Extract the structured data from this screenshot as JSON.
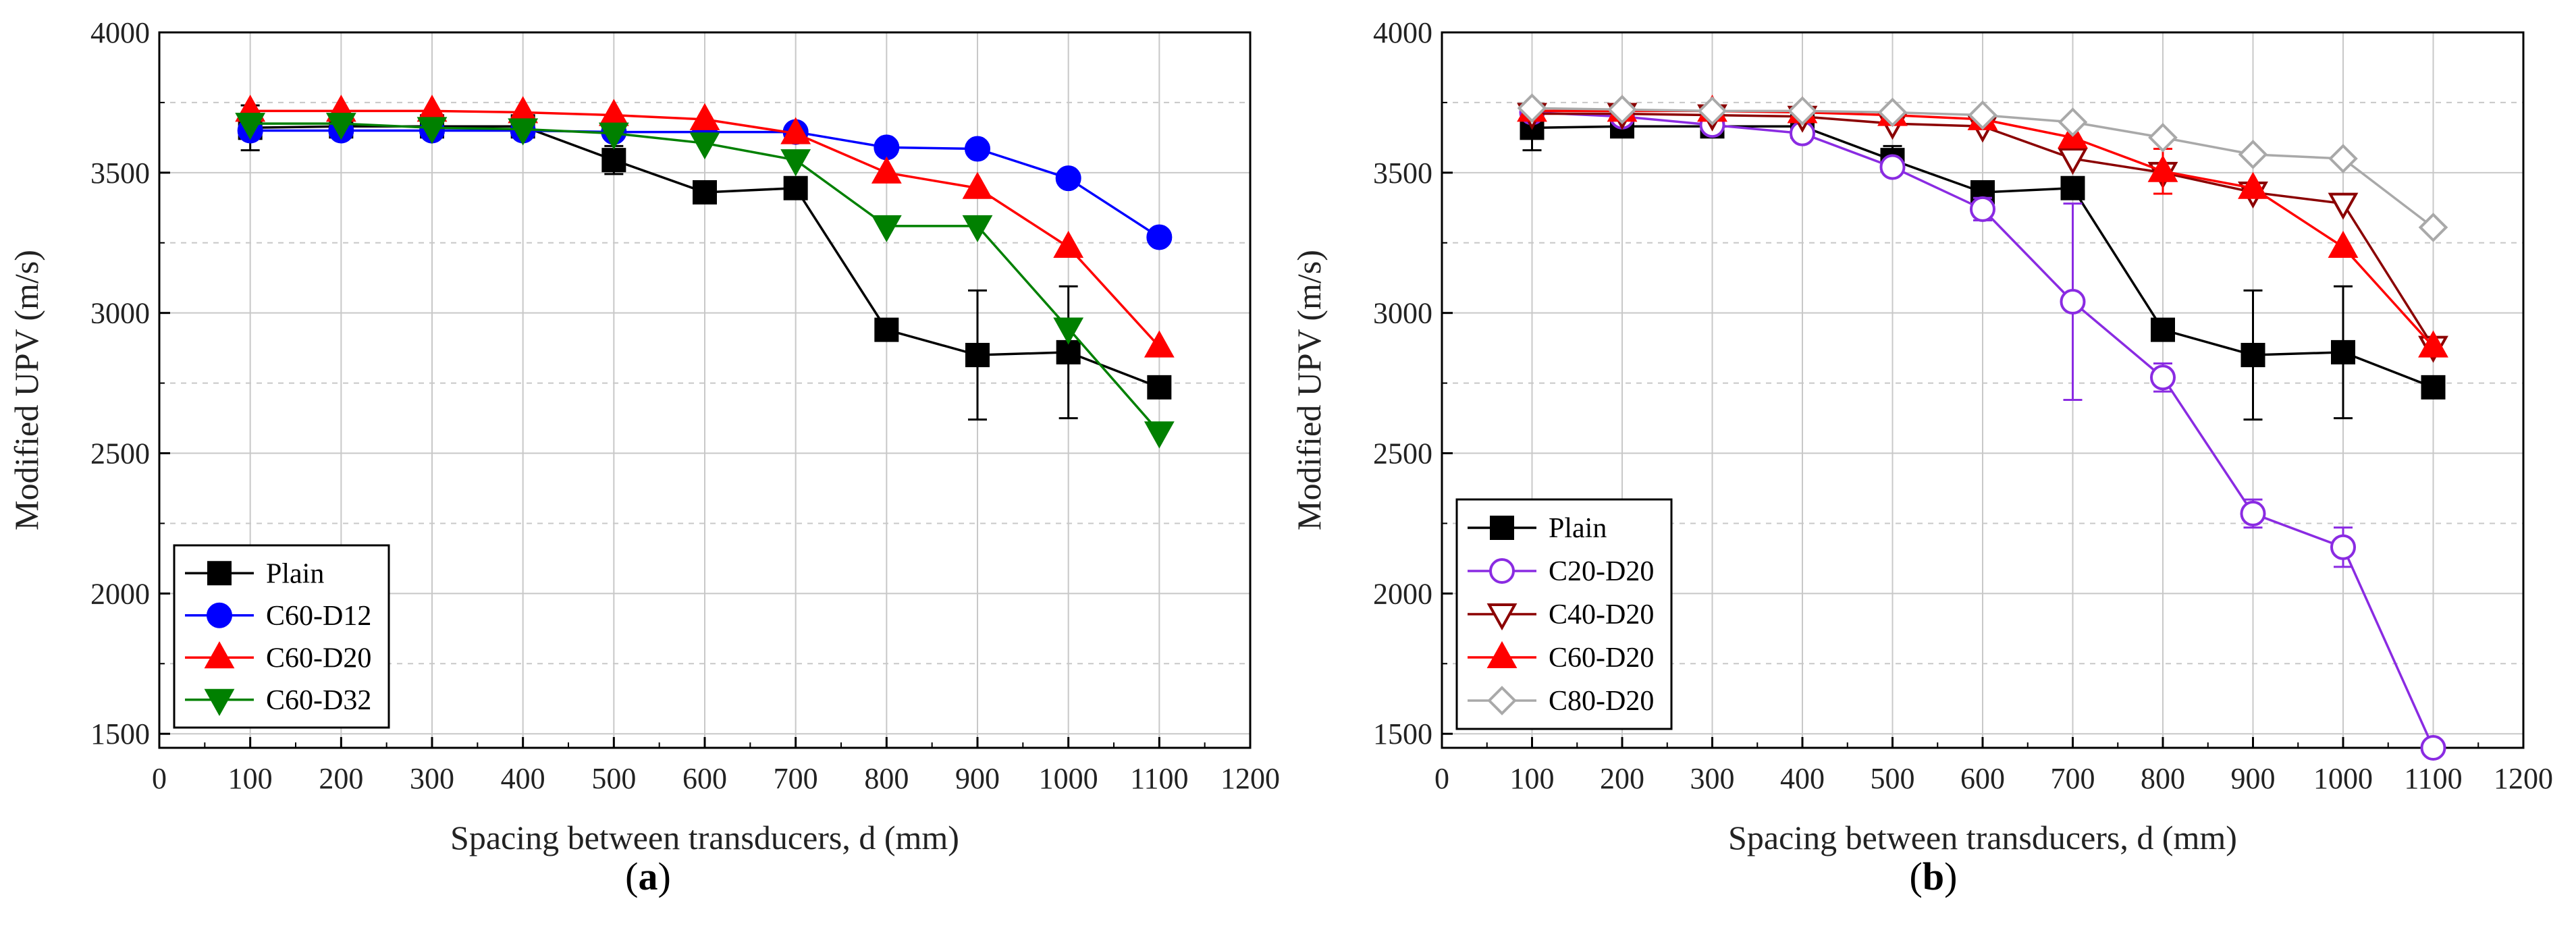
{
  "chart_data": [
    {
      "type": "line",
      "panel_label": "a",
      "title": "",
      "xlabel": "Spacing between transducers, d (mm)",
      "ylabel": "Modified UPV (m/s)",
      "xlim": [
        0,
        1200
      ],
      "ylim": [
        1450,
        4000
      ],
      "x_ticks": [
        0,
        100,
        200,
        300,
        400,
        500,
        600,
        700,
        800,
        900,
        1000,
        1100,
        1200
      ],
      "y_ticks": [
        1500,
        2000,
        2500,
        3000,
        3500,
        4000
      ],
      "grid": true,
      "legend_position": "bottom-left",
      "x": [
        100,
        200,
        300,
        400,
        500,
        600,
        700,
        800,
        900,
        1000,
        1100
      ],
      "series": [
        {
          "name": "Plain",
          "color": "#000000",
          "marker": "square",
          "filled": true,
          "values": [
            3660,
            3665,
            3665,
            3665,
            3545,
            3430,
            3445,
            2940,
            2850,
            2860,
            2735
          ],
          "errors": [
            80,
            0,
            0,
            0,
            50,
            0,
            0,
            0,
            230,
            235,
            0
          ]
        },
        {
          "name": "C60-D12",
          "color": "#0000ff",
          "marker": "circle",
          "filled": true,
          "values": [
            3650,
            3650,
            3650,
            3650,
            3645,
            3645,
            3645,
            3590,
            3585,
            3480,
            3270
          ],
          "errors": [
            0,
            0,
            0,
            0,
            0,
            0,
            0,
            0,
            0,
            0,
            0
          ]
        },
        {
          "name": "C60-D20",
          "color": "#ff0000",
          "marker": "triangle-up",
          "filled": true,
          "values": [
            3720,
            3720,
            3720,
            3715,
            3705,
            3690,
            3640,
            3500,
            3445,
            3235,
            2880
          ],
          "errors": [
            0,
            0,
            0,
            0,
            0,
            0,
            0,
            0,
            0,
            0,
            0
          ]
        },
        {
          "name": "C60-D32",
          "color": "#008000",
          "marker": "triangle-down",
          "filled": true,
          "values": [
            3675,
            3675,
            3660,
            3655,
            3640,
            3605,
            3545,
            3310,
            3310,
            2945,
            2575
          ],
          "errors": [
            0,
            0,
            0,
            0,
            0,
            0,
            0,
            0,
            0,
            0,
            0
          ]
        }
      ]
    },
    {
      "type": "line",
      "panel_label": "b",
      "title": "",
      "xlabel": "Spacing between transducers, d (mm)",
      "ylabel": "Modified UPV (m/s)",
      "xlim": [
        0,
        1200
      ],
      "ylim": [
        1450,
        4000
      ],
      "x_ticks": [
        0,
        100,
        200,
        300,
        400,
        500,
        600,
        700,
        800,
        900,
        1000,
        1100,
        1200
      ],
      "y_ticks": [
        1500,
        2000,
        2500,
        3000,
        3500,
        4000
      ],
      "grid": true,
      "legend_position": "bottom-left",
      "x": [
        100,
        200,
        300,
        400,
        500,
        600,
        700,
        800,
        900,
        1000,
        1100
      ],
      "series": [
        {
          "name": "Plain",
          "color": "#000000",
          "marker": "square",
          "filled": true,
          "values": [
            3660,
            3665,
            3665,
            3665,
            3545,
            3430,
            3445,
            2940,
            2850,
            2860,
            2735
          ],
          "errors": [
            80,
            0,
            0,
            0,
            50,
            0,
            0,
            0,
            230,
            235,
            0
          ]
        },
        {
          "name": "C20-D20",
          "color": "#8a2be2",
          "marker": "circle",
          "filled": false,
          "values": [
            3715,
            3700,
            3670,
            3640,
            3520,
            3370,
            3040,
            2770,
            2285,
            2165,
            1450
          ],
          "errors": [
            0,
            0,
            0,
            0,
            0,
            40,
            350,
            50,
            50,
            70,
            0
          ]
        },
        {
          "name": "C40-D20",
          "color": "#8b0000",
          "marker": "triangle-down",
          "filled": false,
          "values": [
            3710,
            3710,
            3705,
            3700,
            3675,
            3665,
            3550,
            3500,
            3430,
            3390,
            2880
          ],
          "errors": [
            0,
            0,
            0,
            0,
            0,
            0,
            0,
            0,
            0,
            0,
            0
          ]
        },
        {
          "name": "C60-D20",
          "color": "#ff0000",
          "marker": "triangle-up",
          "filled": true,
          "values": [
            3720,
            3720,
            3720,
            3715,
            3705,
            3690,
            3625,
            3505,
            3445,
            3235,
            2880
          ],
          "errors": [
            0,
            0,
            0,
            0,
            0,
            0,
            0,
            80,
            0,
            0,
            0
          ]
        },
        {
          "name": "C80-D20",
          "color": "#a9a9a9",
          "marker": "diamond",
          "filled": false,
          "values": [
            3730,
            3725,
            3720,
            3720,
            3715,
            3705,
            3680,
            3625,
            3565,
            3550,
            3305
          ],
          "errors": [
            0,
            0,
            0,
            0,
            0,
            0,
            0,
            0,
            0,
            0,
            0
          ]
        }
      ]
    }
  ]
}
